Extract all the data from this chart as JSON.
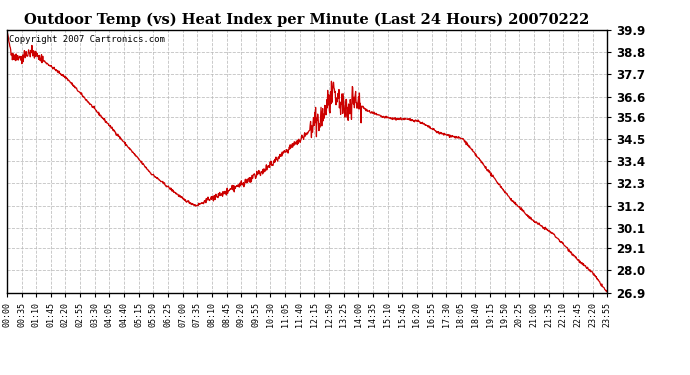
{
  "title": "Outdoor Temp (vs) Heat Index per Minute (Last 24 Hours) 20070222",
  "copyright_text": "Copyright 2007 Cartronics.com",
  "line_color": "#cc0000",
  "background_color": "#ffffff",
  "grid_color": "#bbbbbb",
  "plot_bg_color": "#ffffff",
  "ylim": [
    26.9,
    39.9
  ],
  "yticks": [
    26.9,
    28.0,
    29.1,
    30.1,
    31.2,
    32.3,
    33.4,
    34.5,
    35.6,
    36.6,
    37.7,
    38.8,
    39.9
  ],
  "xtick_labels": [
    "00:00",
    "00:35",
    "01:10",
    "01:45",
    "02:20",
    "02:55",
    "03:30",
    "04:05",
    "04:40",
    "05:15",
    "05:50",
    "06:25",
    "07:00",
    "07:35",
    "08:10",
    "08:45",
    "09:20",
    "09:55",
    "10:30",
    "11:05",
    "11:40",
    "12:15",
    "12:50",
    "13:25",
    "14:00",
    "14:35",
    "15:10",
    "15:45",
    "16:20",
    "16:55",
    "17:30",
    "18:05",
    "18:40",
    "19:15",
    "19:50",
    "20:25",
    "21:00",
    "21:35",
    "22:10",
    "22:45",
    "23:20",
    "23:55"
  ],
  "n_points": 1440,
  "keypoints_t": [
    0.0,
    0.007,
    0.02,
    0.04,
    0.06,
    0.1,
    0.17,
    0.24,
    0.295,
    0.315,
    0.33,
    0.36,
    0.4,
    0.43,
    0.46,
    0.49,
    0.51,
    0.525,
    0.535,
    0.545,
    0.555,
    0.565,
    0.575,
    0.585,
    0.6,
    0.625,
    0.645,
    0.66,
    0.685,
    0.72,
    0.76,
    0.8,
    0.84,
    0.875,
    0.895,
    0.91,
    0.93,
    0.955,
    0.975,
    1.0
  ],
  "keypoints_v": [
    39.9,
    38.7,
    38.5,
    38.8,
    38.4,
    37.5,
    35.2,
    32.8,
    31.5,
    31.2,
    31.4,
    31.8,
    32.4,
    33.0,
    33.8,
    34.5,
    35.1,
    35.5,
    36.3,
    36.6,
    36.4,
    35.8,
    36.5,
    36.3,
    35.9,
    35.6,
    35.5,
    35.5,
    35.4,
    34.8,
    34.5,
    33.0,
    31.5,
    30.5,
    30.1,
    29.8,
    29.2,
    28.4,
    27.9,
    26.9
  ]
}
